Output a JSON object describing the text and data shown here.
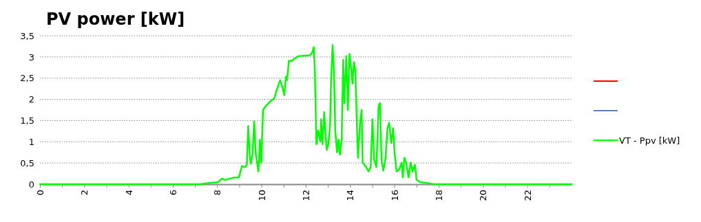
{
  "chart_data": {
    "type": "line",
    "title": "PV power [kW]",
    "xlim": [
      0,
      24
    ],
    "xticks": [
      0,
      {
        "value": 1,
        "label": null
      },
      2,
      {
        "value": 3,
        "label": null
      },
      4,
      {
        "value": 5,
        "label": null
      },
      6,
      {
        "value": 7,
        "label": null
      },
      8,
      {
        "value": 9,
        "label": null
      },
      10,
      {
        "value": 11,
        "label": null
      },
      12,
      {
        "value": 13,
        "label": null
      },
      14,
      {
        "value": 15,
        "label": null
      },
      16,
      {
        "value": 17,
        "label": null
      },
      18,
      {
        "value": 19,
        "label": null
      },
      20,
      {
        "value": 21,
        "label": null
      },
      22,
      {
        "value": 23,
        "label": null
      }
    ],
    "ylim": [
      0,
      3.5
    ],
    "yticks": [
      0,
      {
        "value": 0.5,
        "label": "0,5"
      },
      1,
      {
        "value": 1.5,
        "label": "1,5"
      },
      2,
      {
        "value": 2.5,
        "label": "2,5"
      },
      3,
      {
        "value": 3.5,
        "label": "3,5"
      }
    ],
    "grid": "y",
    "legend": "right",
    "line_style": "solid",
    "series": [
      {
        "color": "#ff0000"
      },
      {
        "color": "#4f81bd"
      },
      {
        "name": "VT - Ppv [kW]",
        "color": "#00ff00",
        "x": [
          0,
          7.22,
          7.64,
          8.05,
          8.21,
          8.36,
          8.78,
          8.98,
          9.12,
          9.24,
          9.34,
          9.4,
          9.48,
          9.52,
          9.6,
          9.67,
          9.74,
          9.86,
          9.93,
          9.99,
          10.07,
          10.17,
          10.43,
          10.58,
          10.69,
          10.84,
          10.92,
          11.03,
          11.1,
          11.15,
          11.24,
          11.36,
          11.46,
          11.67,
          11.98,
          12.19,
          12.29,
          12.36,
          12.41,
          12.48,
          12.56,
          12.66,
          12.69,
          12.76,
          12.83,
          12.94,
          13.02,
          13.1,
          13.14,
          13.21,
          13.27,
          13.33,
          13.41,
          13.48,
          13.54,
          13.62,
          13.69,
          13.74,
          13.83,
          13.9,
          13.97,
          14.05,
          14.11,
          14.18,
          14.24,
          14.31,
          14.36,
          14.45,
          14.52,
          14.57,
          14.73,
          14.83,
          14.93,
          15.01,
          15.09,
          15.19,
          15.29,
          15.35,
          15.42,
          15.5,
          15.6,
          15.69,
          15.76,
          15.86,
          15.94,
          16.02,
          16.1,
          16.22,
          16.33,
          16.38,
          16.45,
          16.53,
          16.64,
          16.74,
          16.82,
          16.93,
          17,
          17.16,
          17.47,
          17.78,
          24
        ],
        "values": [
          0,
          0,
          0.03,
          0.05,
          0.13,
          0.1,
          0.16,
          0.16,
          0.43,
          0.4,
          0.46,
          1.37,
          0.62,
          0.48,
          0.73,
          1.48,
          0.73,
          0.3,
          1.05,
          0.51,
          1.75,
          1.83,
          1.97,
          2.02,
          2.23,
          2.45,
          2.34,
          2.1,
          2.53,
          2.45,
          2.91,
          2.91,
          2.95,
          3.02,
          3.03,
          3.04,
          3.1,
          3.23,
          2.67,
          0.94,
          1.27,
          1,
          1.53,
          0.94,
          1.7,
          0.81,
          0.94,
          1.43,
          2.4,
          3.28,
          2.72,
          1.27,
          0.75,
          1.05,
          0.7,
          1.05,
          2.93,
          1.91,
          3.02,
          1.75,
          3.07,
          2.72,
          2.37,
          2.88,
          2.67,
          1.37,
          0.62,
          1.45,
          1.75,
          0.51,
          0.4,
          0.3,
          0.4,
          1.53,
          0.57,
          0.4,
          1.86,
          1.91,
          0.57,
          0.32,
          0.62,
          1.32,
          1.45,
          0.97,
          1.32,
          0.67,
          0.3,
          0.35,
          0.51,
          0.16,
          0.62,
          0.51,
          0.16,
          0.51,
          0.3,
          0.46,
          0.11,
          0.05,
          0.03,
          0,
          0
        ]
      }
    ]
  }
}
